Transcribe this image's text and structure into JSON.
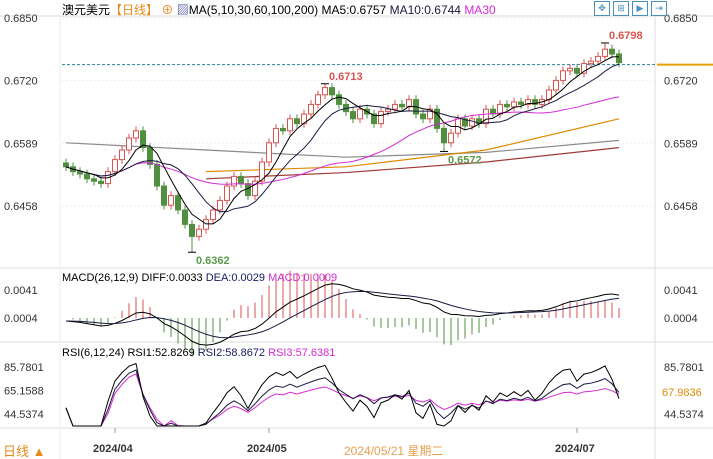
{
  "header": {
    "symbol": "澳元美元",
    "period": "【日线】",
    "ma_label": "MA(5,10,30,60,100,200)",
    "ma5": "MA5:0.6757",
    "ma10": "MA10:0.6744",
    "ma30": "MA30"
  },
  "toolbar_icons": [
    "move-icon",
    "zoom-range-icon",
    "step-forward-icon",
    "jump-end-icon"
  ],
  "macd_header": {
    "title": "MACD(26,12,9)",
    "diff": "DIFF:0.0033",
    "dea": "DEA:0.0029",
    "macd": "MACD:0.0009"
  },
  "rsi_header": {
    "title": "RSI(6,12,24)",
    "rsi1": "RSI1:52.8269",
    "rsi2": "RSI2:58.8672",
    "rsi3": "RSI3:57.6381",
    "current": "67.9836"
  },
  "bottom": {
    "period_button": "日线 ▲",
    "crosshair_date": "2024/05/21 星期二"
  },
  "colors": {
    "up": "#d9534f",
    "down": "#4f8f3f",
    "ma5": "#000000",
    "ma10": "#1a1a40",
    "ma30": "#d62ad6",
    "ma60": "#e08a00",
    "ma100": "#8a8a8a",
    "ma200": "#a03a3a",
    "ref": "#2a7fa0"
  },
  "chart_data": {
    "type": "candlestick",
    "price_axis": {
      "ticks": [
        "0.6850",
        "0.6720",
        "0.6589",
        "0.6458"
      ],
      "ylim": [
        0.6352,
        0.688
      ]
    },
    "date_ticks": [
      {
        "label": "2024/04",
        "index": 7
      },
      {
        "label": "2024/05",
        "index": 29
      },
      {
        "label": "2024/07",
        "index": 73
      }
    ],
    "close": [
      0.654,
      0.653,
      0.6525,
      0.6515,
      0.651,
      0.6505,
      0.653,
      0.6555,
      0.6575,
      0.66,
      0.6615,
      0.658,
      0.6545,
      0.65,
      0.646,
      0.648,
      0.645,
      0.642,
      0.6395,
      0.641,
      0.643,
      0.645,
      0.647,
      0.65,
      0.652,
      0.6505,
      0.648,
      0.651,
      0.655,
      0.659,
      0.662,
      0.6615,
      0.664,
      0.663,
      0.665,
      0.667,
      0.669,
      0.6705,
      0.669,
      0.667,
      0.6655,
      0.664,
      0.666,
      0.665,
      0.663,
      0.6655,
      0.666,
      0.667,
      0.6665,
      0.668,
      0.665,
      0.664,
      0.666,
      0.662,
      0.659,
      0.661,
      0.664,
      0.6625,
      0.664,
      0.663,
      0.666,
      0.665,
      0.667,
      0.6665,
      0.6675,
      0.667,
      0.668,
      0.667,
      0.668,
      0.67,
      0.672,
      0.674,
      0.6745,
      0.6735,
      0.6755,
      0.676,
      0.677,
      0.6785,
      0.6775,
      0.6757
    ],
    "annotations": [
      {
        "text": "0.6362",
        "index": 18,
        "type": "low",
        "value": 0.6362
      },
      {
        "text": "0.6713",
        "index": 37,
        "type": "high",
        "value": 0.6713
      },
      {
        "text": "0.6572",
        "index": 54,
        "type": "low",
        "value": 0.6572
      },
      {
        "text": "0.6798",
        "index": 77,
        "type": "high",
        "value": 0.6798
      }
    ],
    "long_ma": {
      "ma60": [
        [
          20,
          0.653
        ],
        [
          40,
          0.654
        ],
        [
          60,
          0.6575
        ],
        [
          79,
          0.664
        ]
      ],
      "ma100": [
        [
          0,
          0.659
        ],
        [
          20,
          0.6575
        ],
        [
          40,
          0.656
        ],
        [
          60,
          0.657
        ],
        [
          79,
          0.6595
        ]
      ],
      "ma200": [
        [
          20,
          0.6515
        ],
        [
          40,
          0.6528
        ],
        [
          60,
          0.655
        ],
        [
          79,
          0.658
        ]
      ]
    },
    "macd_axis": [
      "0.0041",
      "0.0004"
    ],
    "rsi_axis": [
      "85.7801",
      "65.1588",
      "44.5374"
    ]
  }
}
